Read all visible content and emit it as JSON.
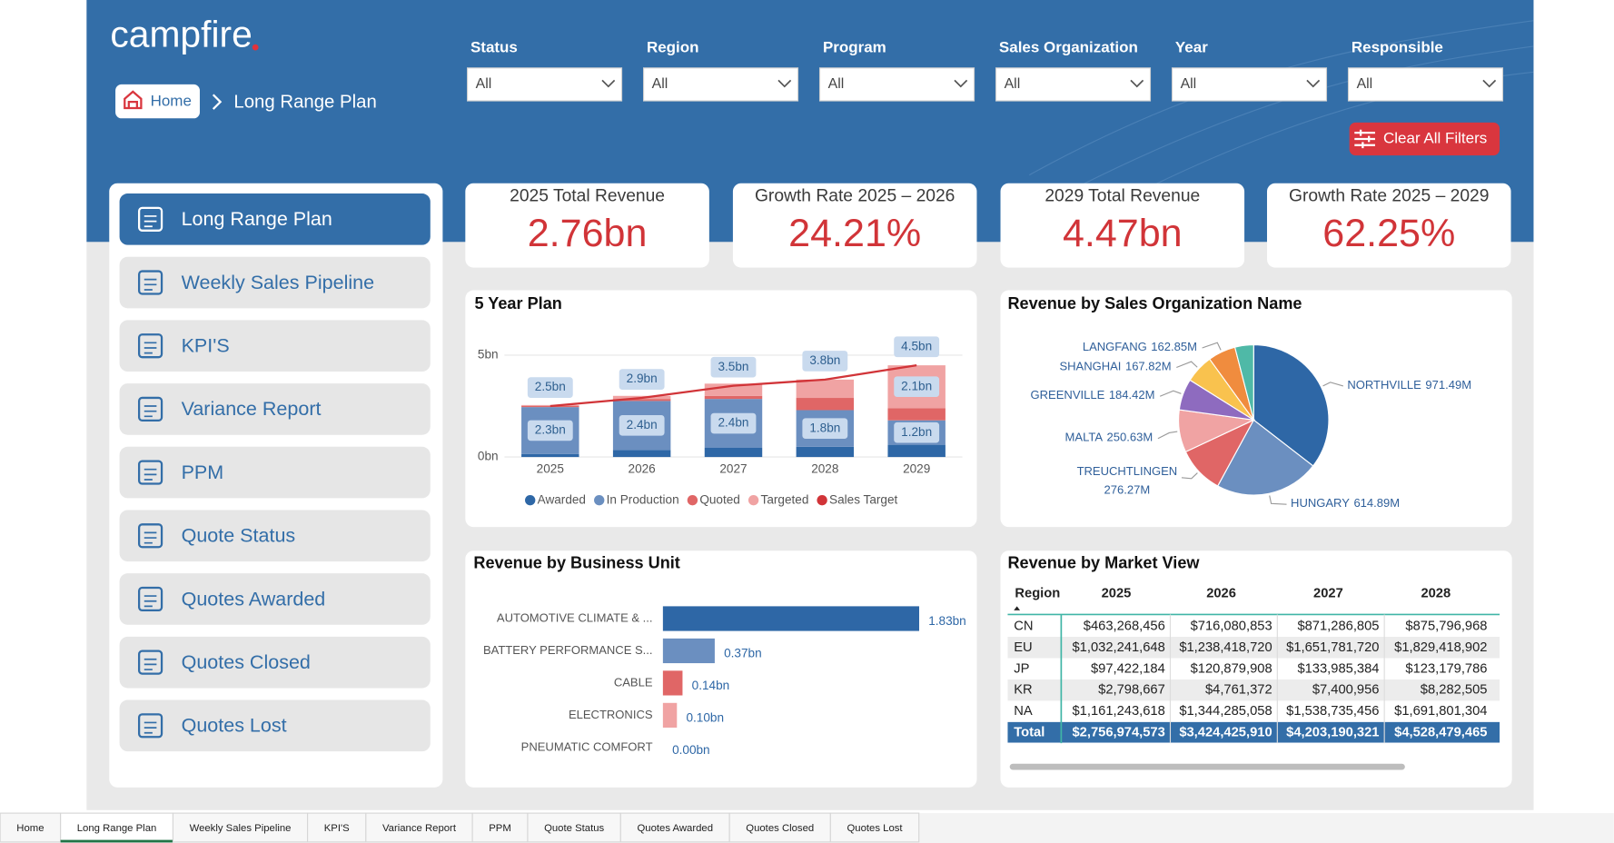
{
  "header": {
    "logo": "campfire",
    "breadcrumb": {
      "home": "Home",
      "current": "Long Range Plan"
    }
  },
  "filters": [
    {
      "label": "Status",
      "value": "All"
    },
    {
      "label": "Region",
      "value": "All"
    },
    {
      "label": "Program",
      "value": "All"
    },
    {
      "label": "Sales Organization",
      "value": "All"
    },
    {
      "label": "Year",
      "value": "All"
    },
    {
      "label": "Responsible",
      "value": "All"
    }
  ],
  "clear_button": "Clear All Filters",
  "nav": [
    "Long Range Plan",
    "Weekly Sales Pipeline",
    "KPI'S",
    "Variance Report",
    "PPM",
    "Quote Status",
    "Quotes Awarded",
    "Quotes Closed",
    "Quotes Lost"
  ],
  "kpis": [
    {
      "title": "2025 Total Revenue",
      "value": "2.76bn"
    },
    {
      "title": "Growth Rate 2025 – 2026",
      "value": "24.21%"
    },
    {
      "title": "2029 Total Revenue",
      "value": "4.47bn"
    },
    {
      "title": "Growth Rate 2025 – 2029",
      "value": "62.25%"
    }
  ],
  "chart_data": [
    {
      "type": "bar",
      "stacked": true,
      "title": "5 Year Plan",
      "categories": [
        "2025",
        "2026",
        "2027",
        "2028",
        "2029"
      ],
      "ylim": [
        0,
        5
      ],
      "yticks": [
        {
          "value": 0,
          "label": "0bn"
        },
        {
          "value": 5,
          "label": "5bn"
        }
      ],
      "grid": true,
      "legend": "bottom",
      "series": [
        {
          "name": "Awarded",
          "color": "#2e67a6",
          "values": [
            0.15,
            0.35,
            0.45,
            0.5,
            0.6
          ]
        },
        {
          "name": "In Production",
          "color": "#6b8fc0",
          "values": [
            2.3,
            2.4,
            2.4,
            1.8,
            1.2
          ],
          "value_labels": [
            "2.3bn",
            "2.4bn",
            "2.4bn",
            "1.8bn",
            "1.2bn"
          ]
        },
        {
          "name": "Quoted",
          "color": "#e06666",
          "values": [
            0.05,
            0.1,
            0.15,
            0.6,
            0.6
          ]
        },
        {
          "name": "Targeted",
          "color": "#f0a3a3",
          "values": [
            0.05,
            0.15,
            0.6,
            0.9,
            2.1
          ],
          "value_labels": [
            null,
            null,
            null,
            null,
            "2.1bn"
          ]
        },
        {
          "name": "Sales Target",
          "type": "line",
          "color": "#d13438",
          "values": [
            2.5,
            2.9,
            3.5,
            3.8,
            4.5
          ],
          "value_labels": [
            "2.5bn",
            "2.9bn",
            "3.5bn",
            "3.8bn",
            "4.5bn"
          ]
        }
      ]
    },
    {
      "type": "pie",
      "title": "Revenue by Sales Organization Name",
      "categories": [
        "NORTHVILLE",
        "HUNGARY",
        "TREUCHTLINGEN",
        "MALTA",
        "GREENVILLE",
        "SHANGHAI",
        "LANGFANG",
        null
      ],
      "values": [
        971.49,
        614.89,
        276.27,
        250.63,
        184.42,
        167.82,
        162.85,
        110
      ],
      "value_labels": [
        "971.49M",
        "614.89M",
        "276.27M",
        "250.63M",
        "184.42M",
        "167.82M",
        "162.85M",
        null
      ],
      "colors": [
        "#2e67a6",
        "#6b8fc0",
        "#e06666",
        "#f0a3a3",
        "#8e6bbf",
        "#f9c24e",
        "#f08c3e",
        "#4fb9a7"
      ]
    },
    {
      "type": "barh",
      "title": "Revenue by Business Unit",
      "categories": [
        "AUTOMOTIVE CLIMATE & ...",
        "BATTERY PERFORMANCE S...",
        "CABLE",
        "ELECTRONICS",
        "PNEUMATIC COMFORT"
      ],
      "values": [
        1.83,
        0.37,
        0.14,
        0.1,
        0.0
      ],
      "value_labels": [
        "1.83bn",
        "0.37bn",
        "0.14bn",
        "0.10bn",
        "0.00bn"
      ],
      "colors": [
        "#2e67a6",
        "#6b8fc0",
        "#e06666",
        "#f0a3a3",
        "#cccccc"
      ]
    }
  ],
  "market_table": {
    "title": "Revenue by Market View",
    "columns": [
      "Region",
      "2025",
      "2026",
      "2027",
      "2028"
    ],
    "rows": [
      [
        "CN",
        "$463,268,456",
        "$716,080,853",
        "$871,286,805",
        "$875,796,968"
      ],
      [
        "EU",
        "$1,032,241,648",
        "$1,238,418,720",
        "$1,651,781,720",
        "$1,829,418,902"
      ],
      [
        "JP",
        "$97,422,184",
        "$120,879,908",
        "$133,985,384",
        "$123,179,786"
      ],
      [
        "KR",
        "$2,798,667",
        "$4,761,372",
        "$7,400,956",
        "$8,282,505"
      ],
      [
        "NA",
        "$1,161,243,618",
        "$1,344,285,058",
        "$1,538,735,456",
        "$1,691,801,304"
      ]
    ],
    "total": [
      "Total",
      "$2,756,974,573",
      "$3,424,425,910",
      "$4,203,190,321",
      "$4,528,479,465"
    ]
  },
  "tabs": {
    "items": [
      "Home",
      "Long Range Plan",
      "Weekly Sales Pipeline",
      "KPI'S",
      "Variance Report",
      "PPM",
      "Quote Status",
      "Quotes Awarded",
      "Quotes Closed",
      "Quotes Lost"
    ],
    "active": 1
  }
}
